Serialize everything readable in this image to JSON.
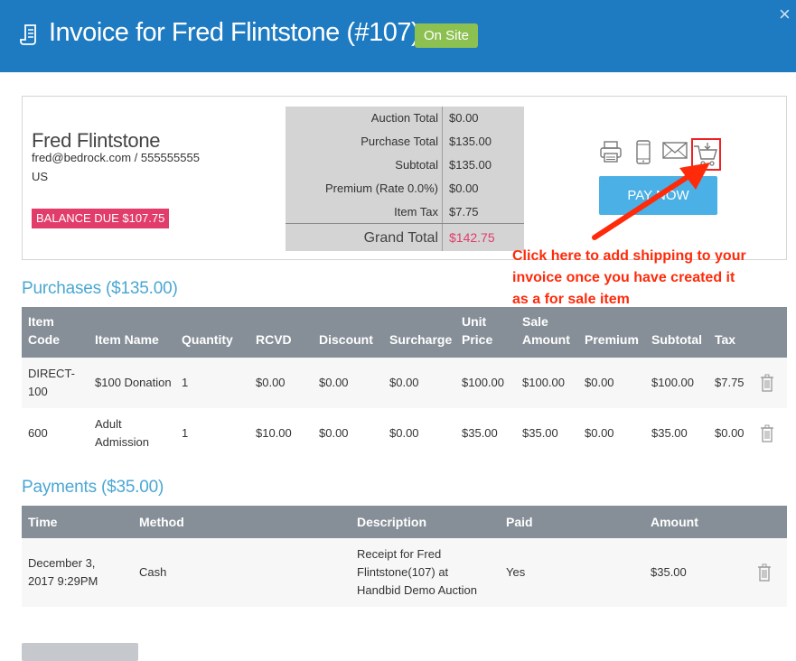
{
  "header": {
    "title": "Invoice for Fred Flintstone (#107)",
    "badge": "On Site",
    "close": "×",
    "colors": {
      "bar": "#1e7bc1",
      "badge": "#8cc152"
    }
  },
  "customer": {
    "name": "Fred Flintstone",
    "contact": "fred@bedrock.com / 555555555",
    "country": "US",
    "balance_due": "BALANCE DUE $107.75"
  },
  "totals": {
    "rows": [
      {
        "label": "Auction Total",
        "value": "$0.00"
      },
      {
        "label": "Purchase Total",
        "value": "$135.00"
      },
      {
        "label": "Subtotal",
        "value": "$135.00"
      },
      {
        "label": "Premium (Rate 0.0%)",
        "value": "$0.00"
      },
      {
        "label": "Item Tax",
        "value": "$7.75"
      }
    ],
    "grand_label": "Grand Total",
    "grand_value": "$142.75"
  },
  "actions": {
    "icons": [
      "printer-icon",
      "mobile-icon",
      "email-icon",
      "cart-icon"
    ],
    "pay_now": "PAY NOW"
  },
  "annotation": {
    "text": "Click here to add shipping to your invoice once you have created it as a for sale item",
    "color": "#ff2a0a"
  },
  "purchases": {
    "title": "Purchases ($135.00)",
    "columns": [
      "Item Code",
      "Item Name",
      "Quantity",
      "RCVD",
      "Discount",
      "Surcharge",
      "Unit Price",
      "Sale Amount",
      "Premium",
      "Subtotal",
      "Tax"
    ],
    "rows": [
      [
        "DIRECT-100",
        "$100 Donation",
        "1",
        "$0.00",
        "$0.00",
        "$0.00",
        "$100.00",
        "$100.00",
        "$0.00",
        "$100.00",
        "$7.75"
      ],
      [
        "600",
        "Adult Admission",
        "1",
        "$10.00",
        "$0.00",
        "$0.00",
        "$35.00",
        "$35.00",
        "$0.00",
        "$35.00",
        "$0.00"
      ]
    ]
  },
  "payments": {
    "title": "Payments ($35.00)",
    "columns": [
      "Time",
      "Method",
      "Description",
      "Paid",
      "Amount"
    ],
    "rows": [
      [
        "December 3, 2017 9:29PM",
        "Cash",
        "Receipt for Fred Flintstone(107) at Handbid Demo Auction",
        "Yes",
        "$35.00"
      ]
    ]
  }
}
